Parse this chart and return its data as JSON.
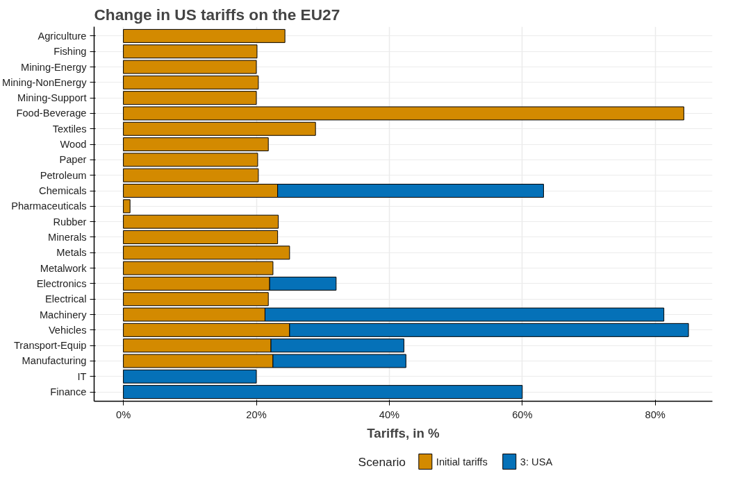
{
  "chart_data": {
    "type": "bar",
    "orientation": "horizontal",
    "stacked": true,
    "title": "Change in US tariffs on the EU27",
    "xlabel": "Tariffs, in %",
    "legend_title": "Scenario",
    "legend": "bottom",
    "grid": true,
    "categories": [
      "Agriculture",
      "Fishing",
      "Mining-Energy",
      "Mining-NonEnergy",
      "Mining-Support",
      "Food-Beverage",
      "Textiles",
      "Wood",
      "Paper",
      "Petroleum",
      "Chemicals",
      "Pharmaceuticals",
      "Rubber",
      "Minerals",
      "Metals",
      "Metalwork",
      "Electronics",
      "Electrical",
      "Machinery",
      "Vehicles",
      "Transport-Equip",
      "Manufacturing",
      "IT",
      "Finance"
    ],
    "series": [
      {
        "name": "Initial tariffs",
        "color": "#d38a00",
        "values": [
          24.3,
          20.1,
          20.0,
          20.3,
          20.0,
          84.3,
          28.9,
          21.8,
          20.2,
          20.3,
          23.2,
          1.0,
          23.3,
          23.2,
          25.0,
          22.5,
          22.0,
          21.8,
          21.3,
          25.0,
          22.2,
          22.5,
          null,
          null
        ]
      },
      {
        "name": "3: USA",
        "color": "#0571b8",
        "values": [
          null,
          null,
          null,
          null,
          null,
          null,
          null,
          null,
          null,
          null,
          40.0,
          null,
          null,
          null,
          null,
          null,
          10.0,
          null,
          60.0,
          60.0,
          20.0,
          20.0,
          20.0,
          60.0
        ]
      }
    ],
    "xlim": [
      -4.4,
      88.6
    ],
    "xticks": [
      {
        "value": 0,
        "label": "0%"
      },
      {
        "value": 20,
        "label": "20%"
      },
      {
        "value": 40,
        "label": "40%"
      },
      {
        "value": 60,
        "label": "60%"
      },
      {
        "value": 80,
        "label": "80%"
      }
    ]
  }
}
